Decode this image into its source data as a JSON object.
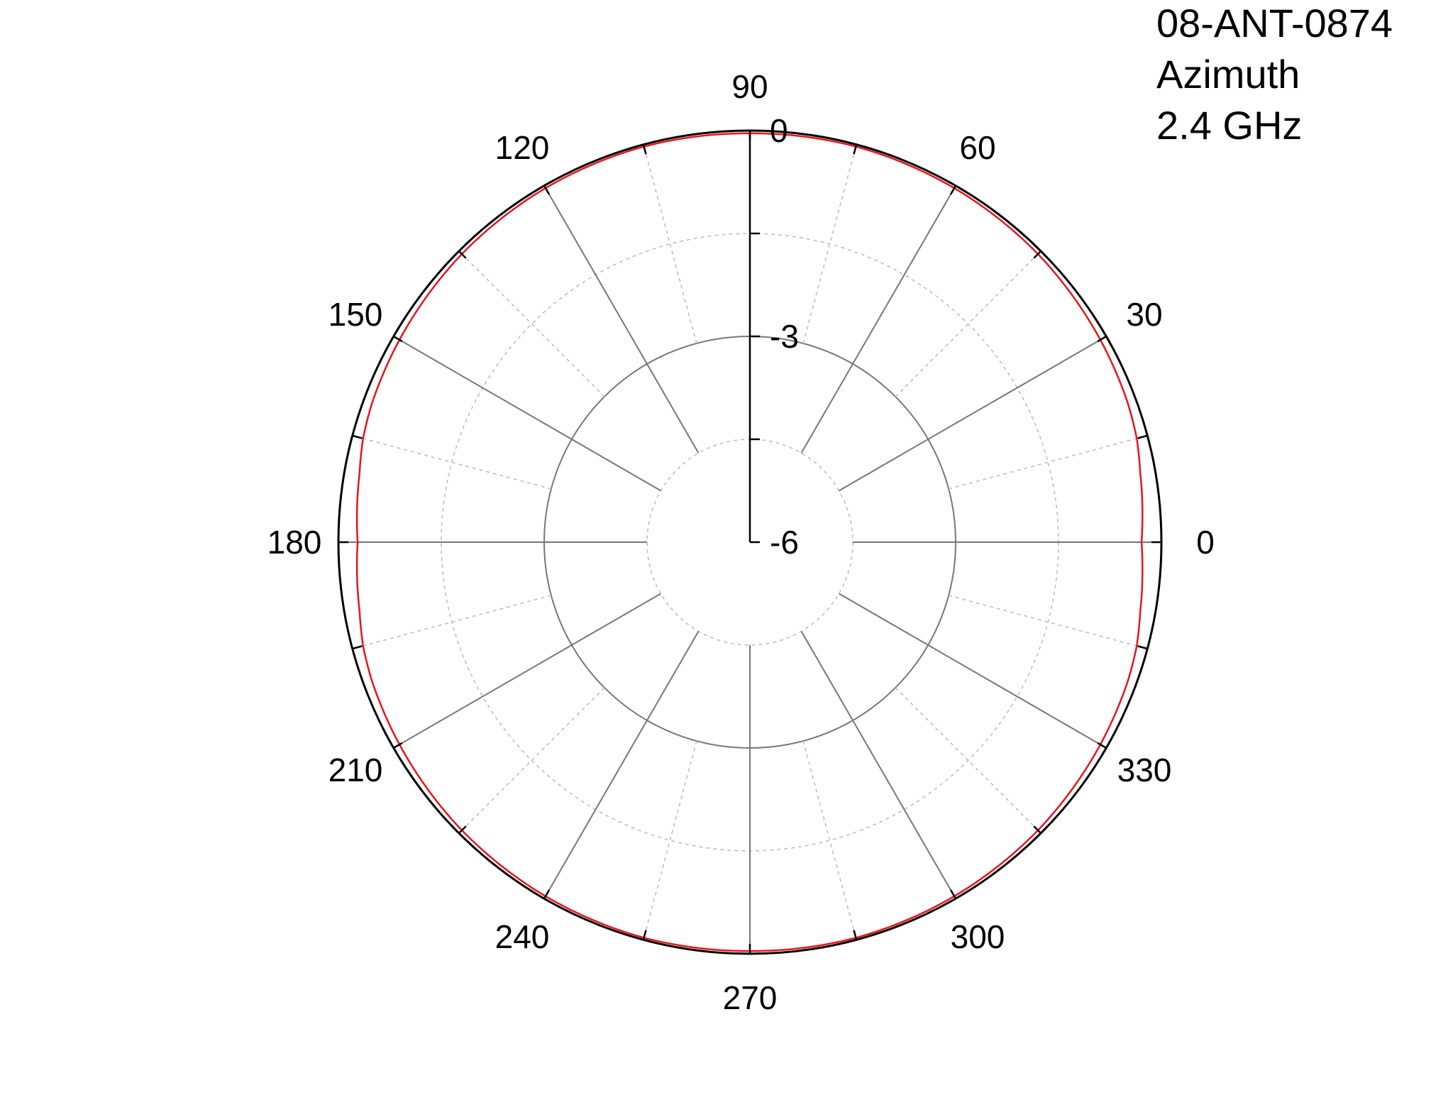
{
  "title_lines": [
    "08-ANT-0874",
    "Azimuth",
    "2.4 GHz"
  ],
  "chart_data": {
    "type": "polar-line",
    "title": "08-ANT-0874 Azimuth 2.4 GHz",
    "angular_axis": {
      "unit": "degrees",
      "ticks": [
        0,
        30,
        60,
        90,
        120,
        150,
        180,
        210,
        240,
        270,
        300,
        330
      ],
      "tick_labels": [
        "0",
        "30",
        "60",
        "90",
        "120",
        "150",
        "180",
        "210",
        "240",
        "270",
        "300",
        "330"
      ],
      "minor_step": 15,
      "direction": "counterclockwise",
      "zero_location": "right"
    },
    "radial_axis": {
      "unit": "dB",
      "range": [
        -6,
        0
      ],
      "tick_labels": [
        "0",
        "-3",
        "-6"
      ],
      "tick_values": [
        0,
        -3,
        -6
      ],
      "minor_ticks": [
        -1.5,
        -4.5
      ]
    },
    "grid": true,
    "series": [
      {
        "color": "#e8141c",
        "angles": [
          0,
          10,
          15,
          20,
          30,
          45,
          60,
          75,
          90,
          105,
          120,
          135,
          150,
          160,
          165,
          170,
          180,
          190,
          195,
          200,
          210,
          225,
          240,
          255,
          270,
          285,
          300,
          315,
          330,
          340,
          345,
          350,
          360
        ],
        "values": [
          -0.29,
          -0.22,
          -0.16,
          -0.13,
          -0.1,
          -0.06,
          -0.04,
          -0.03,
          -0.04,
          -0.03,
          -0.04,
          -0.06,
          -0.1,
          -0.13,
          -0.16,
          -0.22,
          -0.28,
          -0.22,
          -0.16,
          -0.13,
          -0.1,
          -0.06,
          -0.04,
          -0.03,
          -0.04,
          -0.03,
          -0.04,
          -0.06,
          -0.1,
          -0.13,
          -0.16,
          -0.22,
          -0.29
        ]
      }
    ]
  }
}
